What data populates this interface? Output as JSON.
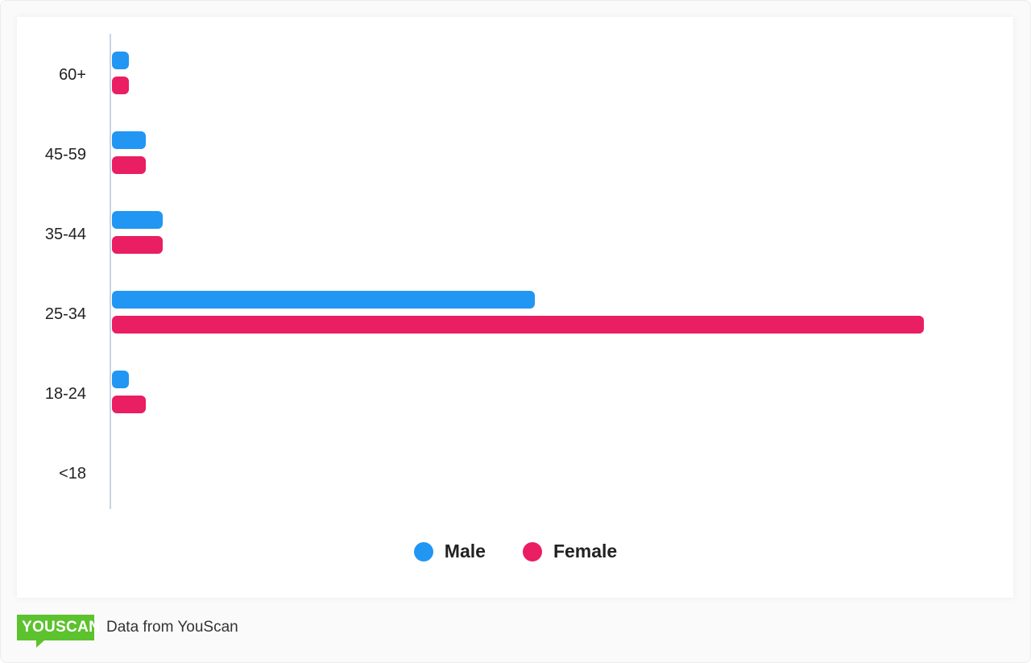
{
  "chart_data": {
    "type": "bar",
    "orientation": "horizontal",
    "categories": [
      "60+",
      "45-59",
      "35-44",
      "25-34",
      "18-24",
      "<18"
    ],
    "series": [
      {
        "name": "Male",
        "color": "#2196f3",
        "values": [
          1,
          2,
          3,
          25,
          1,
          0
        ]
      },
      {
        "name": "Female",
        "color": "#e91e63",
        "values": [
          1,
          2,
          3,
          48,
          2,
          0
        ]
      }
    ],
    "legend_position": "bottom",
    "grid": false,
    "xlim": [
      0,
      50
    ]
  },
  "footer": {
    "logo_text": "YOUSCAN",
    "source_text": "Data from YouScan",
    "logo_color": "#5cc22e"
  }
}
